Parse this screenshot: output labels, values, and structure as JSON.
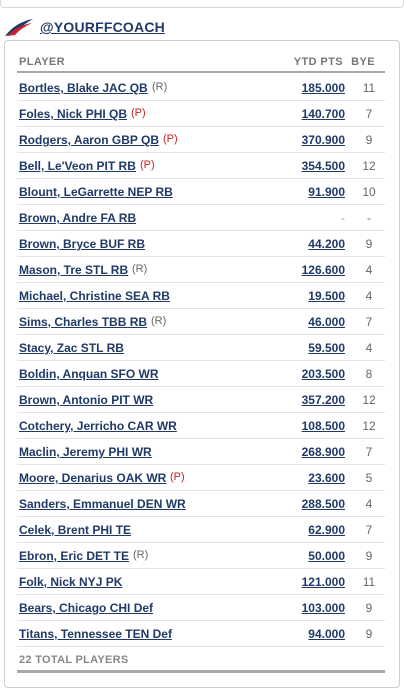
{
  "team_name": "@YOURFFCOACH",
  "columns": {
    "player": "PLAYER",
    "pts": "YTD PTS",
    "bye": "BYE"
  },
  "players": [
    {
      "name": "Bortles, Blake JAC QB",
      "tag": "(R)",
      "tag_type": "rookie",
      "pts": "185.000",
      "bye": "11"
    },
    {
      "name": "Foles, Nick PHI QB",
      "tag": "(P)",
      "tag_type": "prob",
      "pts": "140.700",
      "bye": "7"
    },
    {
      "name": "Rodgers, Aaron GBP QB",
      "tag": "(P)",
      "tag_type": "prob",
      "pts": "370.900",
      "bye": "9"
    },
    {
      "name": "Bell, Le'Veon PIT RB",
      "tag": "(P)",
      "tag_type": "prob",
      "pts": "354.500",
      "bye": "12"
    },
    {
      "name": "Blount, LeGarrette NEP RB",
      "tag": "",
      "tag_type": "",
      "pts": "91.900",
      "bye": "10"
    },
    {
      "name": "Brown, Andre FA RB",
      "tag": "",
      "tag_type": "",
      "pts": "-",
      "bye": "-"
    },
    {
      "name": "Brown, Bryce BUF RB",
      "tag": "",
      "tag_type": "",
      "pts": "44.200",
      "bye": "9"
    },
    {
      "name": "Mason, Tre STL RB",
      "tag": "(R)",
      "tag_type": "rookie",
      "pts": "126.600",
      "bye": "4"
    },
    {
      "name": "Michael, Christine SEA RB",
      "tag": "",
      "tag_type": "",
      "pts": "19.500",
      "bye": "4"
    },
    {
      "name": "Sims, Charles TBB RB",
      "tag": "(R)",
      "tag_type": "rookie",
      "pts": "46.000",
      "bye": "7"
    },
    {
      "name": "Stacy, Zac STL RB",
      "tag": "",
      "tag_type": "",
      "pts": "59.500",
      "bye": "4"
    },
    {
      "name": "Boldin, Anquan SFO WR",
      "tag": "",
      "tag_type": "",
      "pts": "203.500",
      "bye": "8"
    },
    {
      "name": "Brown, Antonio PIT WR",
      "tag": "",
      "tag_type": "",
      "pts": "357.200",
      "bye": "12"
    },
    {
      "name": "Cotchery, Jerricho CAR WR",
      "tag": "",
      "tag_type": "",
      "pts": "108.500",
      "bye": "12"
    },
    {
      "name": "Maclin, Jeremy PHI WR",
      "tag": "",
      "tag_type": "",
      "pts": "268.900",
      "bye": "7"
    },
    {
      "name": "Moore, Denarius OAK WR",
      "tag": "(P)",
      "tag_type": "prob",
      "pts": "23.600",
      "bye": "5"
    },
    {
      "name": "Sanders, Emmanuel DEN WR",
      "tag": "",
      "tag_type": "",
      "pts": "288.500",
      "bye": "4"
    },
    {
      "name": "Celek, Brent PHI TE",
      "tag": "",
      "tag_type": "",
      "pts": "62.900",
      "bye": "7"
    },
    {
      "name": "Ebron, Eric DET TE",
      "tag": "(R)",
      "tag_type": "rookie",
      "pts": "50.000",
      "bye": "9"
    },
    {
      "name": "Folk, Nick NYJ PK",
      "tag": "",
      "tag_type": "",
      "pts": "121.000",
      "bye": "11"
    },
    {
      "name": "Bears, Chicago CHI Def",
      "tag": "",
      "tag_type": "",
      "pts": "103.000",
      "bye": "9"
    },
    {
      "name": "Titans, Tennessee TEN Def",
      "tag": "",
      "tag_type": "",
      "pts": "94.000",
      "bye": "9"
    }
  ],
  "footer": "22 TOTAL PLAYERS",
  "colors": {
    "link": "#1f3a66",
    "probable": "#cc2222",
    "logo_red": "#c8202f",
    "logo_blue": "#1f3a66"
  },
  "icons": {
    "logo": "team-logo-icon"
  }
}
